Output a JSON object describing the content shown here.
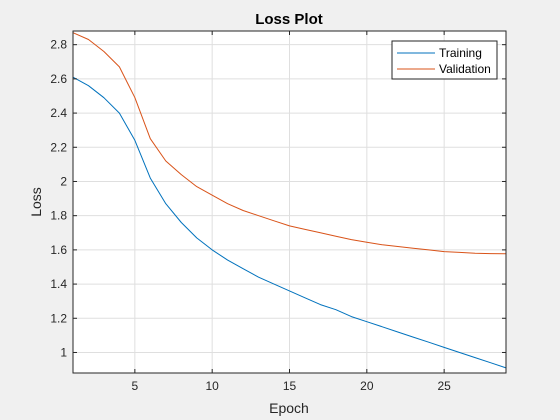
{
  "chart_data": {
    "type": "line",
    "title": "Loss Plot",
    "xlabel": "Epoch",
    "ylabel": "Loss",
    "xlim": [
      1,
      29
    ],
    "ylim": [
      0.88,
      2.88
    ],
    "xticks": [
      5,
      10,
      15,
      20,
      25
    ],
    "yticks": [
      1,
      1.2,
      1.4,
      1.6,
      1.8,
      2,
      2.2,
      2.4,
      2.6,
      2.8
    ],
    "grid": true,
    "legend": {
      "location": "top-right",
      "entries": [
        "Training",
        "Validation"
      ]
    },
    "x": [
      1,
      2,
      3,
      4,
      5,
      6,
      7,
      8,
      9,
      10,
      11,
      12,
      13,
      14,
      15,
      16,
      17,
      18,
      19,
      20,
      21,
      22,
      23,
      24,
      25,
      26,
      27,
      28,
      29
    ],
    "series": [
      {
        "name": "Training",
        "color": "#0072bd",
        "values": [
          2.61,
          2.56,
          2.49,
          2.4,
          2.24,
          2.02,
          1.87,
          1.76,
          1.67,
          1.6,
          1.54,
          1.49,
          1.44,
          1.4,
          1.36,
          1.32,
          1.28,
          1.25,
          1.21,
          1.18,
          1.15,
          1.12,
          1.09,
          1.06,
          1.03,
          1.0,
          0.97,
          0.94,
          0.91
        ]
      },
      {
        "name": "Validation",
        "color": "#d95319",
        "values": [
          2.87,
          2.83,
          2.76,
          2.67,
          2.49,
          2.25,
          2.12,
          2.04,
          1.97,
          1.92,
          1.87,
          1.83,
          1.8,
          1.77,
          1.74,
          1.72,
          1.7,
          1.68,
          1.66,
          1.645,
          1.63,
          1.62,
          1.61,
          1.6,
          1.59,
          1.585,
          1.58,
          1.578,
          1.577
        ]
      }
    ]
  }
}
